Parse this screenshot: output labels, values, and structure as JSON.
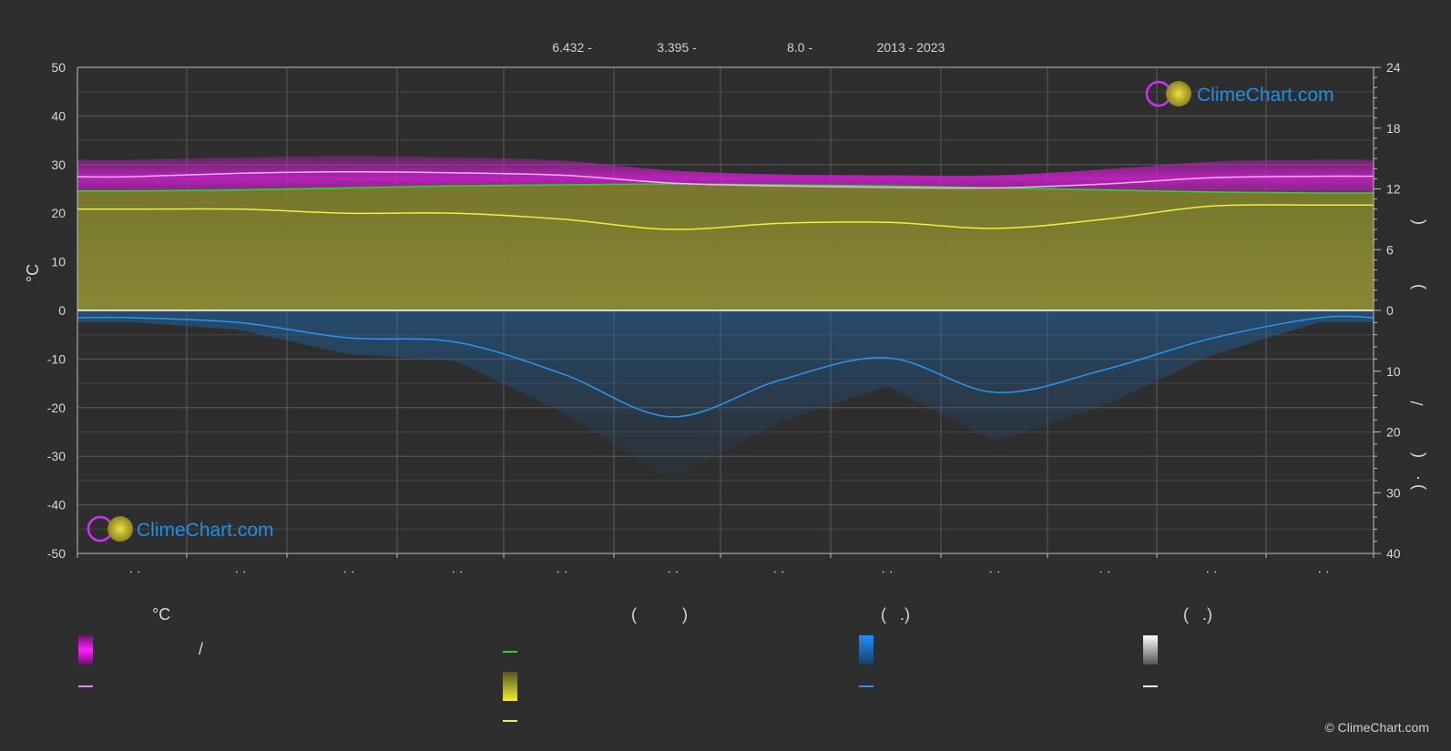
{
  "header": {
    "items": [
      {
        "text": "6.432 -"
      },
      {
        "text": "3.395 -"
      },
      {
        "text": "8.0 -"
      },
      {
        "text": "2013 - 2023"
      }
    ]
  },
  "left_axis_unit": "°C",
  "right_axis_glyphs": [
    "(",
    ")",
    "(",
    ")",
    "/",
    "(",
    "·",
    ")"
  ],
  "logo_text": "ClimeChart.com",
  "copyright": "© ClimeChart.com",
  "legend": {
    "headings": [
      {
        "text": "°C"
      },
      {
        "text": "(          )"
      },
      {
        "text": "(   .)"
      },
      {
        "text": "(   .)"
      }
    ],
    "slash": "/",
    "colors": {
      "temp_band": "#e020e0",
      "temp_mean": "#ff80ff",
      "daylight": "#22dd22",
      "sunshine_band": "#c8c830",
      "sunshine_mean": "#f0f040",
      "rain_band": "#1e7fd8",
      "rain_mean": "#2b95f0",
      "snow_band": "#d0d0d0",
      "snow_mean": "#ffffff"
    }
  },
  "chart_data": {
    "type": "area",
    "x_count": 12,
    "x_tick_labels": [
      "· ·",
      "· ·",
      "· ·",
      "· ·",
      "· ·",
      "· ·",
      "· ·",
      "· ·",
      "· ·",
      "· ·",
      "· ·",
      "· ·"
    ],
    "left_axis": {
      "unit": "°C",
      "ylim": [
        -50,
        50
      ],
      "ticks": [
        50,
        40,
        30,
        20,
        10,
        0,
        -10,
        -20,
        -30,
        -40,
        -50
      ]
    },
    "right_axis_top": {
      "ylim": [
        0,
        24
      ],
      "ticks": [
        24,
        18,
        12,
        6,
        0
      ]
    },
    "right_axis_bottom": {
      "ylim": [
        0,
        40
      ],
      "ticks": [
        10,
        20,
        30,
        40
      ]
    },
    "grid": true,
    "series": [
      {
        "key": "temp_mean",
        "values": [
          27.5,
          28.2,
          28.5,
          28.3,
          27.8,
          26.2,
          25.6,
          25.3,
          25.2,
          26.0,
          27.3,
          27.6
        ]
      },
      {
        "key": "temp_max",
        "values": [
          31.0,
          31.5,
          31.8,
          31.5,
          30.8,
          28.8,
          28.0,
          27.8,
          27.8,
          29.0,
          30.6,
          31.0
        ]
      },
      {
        "key": "temp_min",
        "values": [
          23.8,
          24.4,
          24.8,
          24.6,
          24.2,
          23.4,
          23.0,
          22.8,
          22.6,
          23.2,
          23.8,
          24.0
        ]
      },
      {
        "key": "daylight_hours",
        "values": [
          11.8,
          11.9,
          12.1,
          12.3,
          12.4,
          12.5,
          12.4,
          12.3,
          12.1,
          11.9,
          11.7,
          11.6
        ]
      },
      {
        "key": "sunshine_hours",
        "values": [
          10.0,
          10.0,
          9.6,
          9.6,
          9.0,
          8.0,
          8.6,
          8.7,
          8.1,
          9.0,
          10.3,
          10.4
        ]
      },
      {
        "key": "precip_mm",
        "values": [
          1.2,
          2.0,
          4.5,
          5.2,
          10.5,
          17.5,
          11.5,
          7.8,
          13.5,
          9.8,
          4.6,
          1.2
        ]
      }
    ]
  }
}
